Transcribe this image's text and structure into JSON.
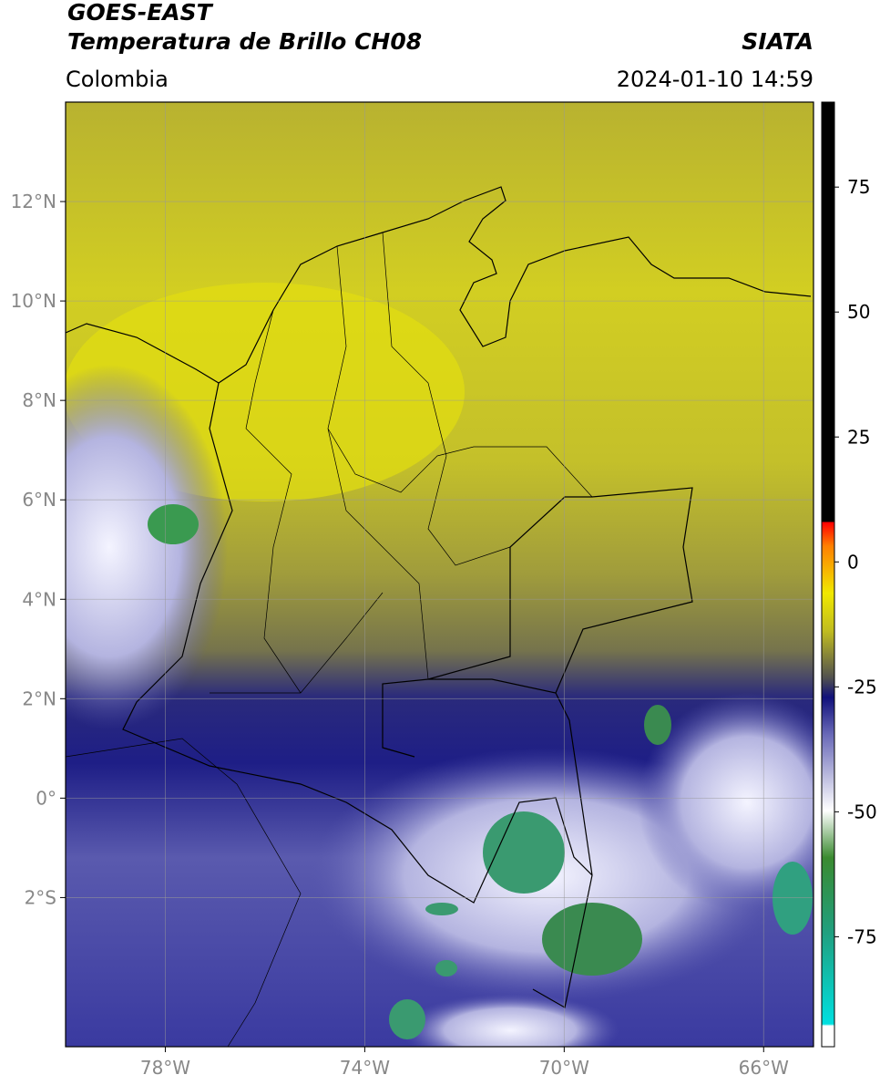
{
  "header": {
    "title": "GOES-EAST",
    "subtitle": "Temperatura de Brillo CH08",
    "source": "SIATA",
    "region": "Colombia",
    "datetime": "2024-01-10 14:59"
  },
  "map": {
    "xlim": [
      -80,
      -65
    ],
    "ylim": [
      -5,
      14
    ],
    "xticks": [
      {
        "value": -78,
        "label": "78°W"
      },
      {
        "value": -74,
        "label": "74°W"
      },
      {
        "value": -70,
        "label": "70°W"
      },
      {
        "value": -66,
        "label": "66°W"
      }
    ],
    "yticks": [
      {
        "value": 12,
        "label": "12°N"
      },
      {
        "value": 10,
        "label": "10°N"
      },
      {
        "value": 8,
        "label": "8°N"
      },
      {
        "value": 6,
        "label": "6°N"
      },
      {
        "value": 4,
        "label": "4°N"
      },
      {
        "value": 2,
        "label": "2°N"
      },
      {
        "value": 0,
        "label": "0°"
      },
      {
        "value": -2,
        "label": "2°S"
      }
    ]
  },
  "colorbar": {
    "lim": [
      -97,
      92
    ],
    "ticks": [
      75,
      50,
      25,
      0,
      -25,
      -50,
      -75
    ]
  }
}
